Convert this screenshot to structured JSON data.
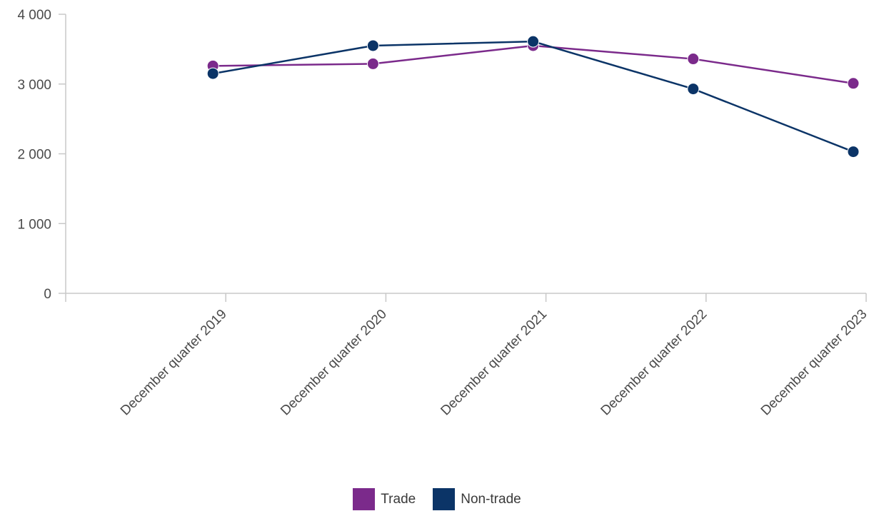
{
  "chart_data": {
    "type": "line",
    "title": "",
    "xlabel": "",
    "ylabel": "",
    "categories": [
      "December quarter 2019",
      "December quarter 2020",
      "December quarter 2021",
      "December quarter 2022",
      "December quarter 2023"
    ],
    "series": [
      {
        "name": "Trade",
        "color": "#7b2a8b",
        "values": [
          3260,
          3290,
          3550,
          3360,
          3010
        ]
      },
      {
        "name": "Non-trade",
        "color": "#0b3467",
        "values": [
          3150,
          3550,
          3610,
          2930,
          2030
        ]
      }
    ],
    "ylim": [
      0,
      4000
    ],
    "yticks": [
      0,
      1000,
      2000,
      3000,
      4000
    ],
    "ytick_labels": [
      "0",
      "1 000",
      "2 000",
      "3 000",
      "4 000"
    ],
    "grid": false,
    "legend_position": "bottom-center"
  }
}
